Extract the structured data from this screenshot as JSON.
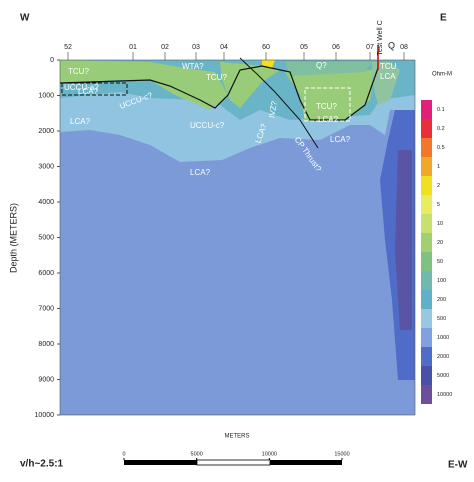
{
  "chart_data": {
    "type": "section",
    "title_left": "W",
    "title_right": "E",
    "ylabel": "Depth (METERS)",
    "xlabel": "METERS",
    "ylim": [
      0,
      10000
    ],
    "yticks": [
      0,
      1000,
      2000,
      3000,
      4000,
      5000,
      6000,
      7000,
      8000,
      9000,
      10000
    ],
    "stations": [
      "52",
      "01",
      "02",
      "03",
      "04",
      "60",
      "05",
      "06",
      "07",
      "08"
    ],
    "well": "Test Well C",
    "well_mark": "Q",
    "colorbar": {
      "title": "Ohm-M",
      "labels": [
        0.1,
        0.2,
        0.5,
        1,
        2,
        5,
        10,
        20,
        50,
        100,
        200,
        500,
        1000,
        2000,
        5000,
        10000
      ],
      "colors": [
        "#e0207a",
        "#e8303a",
        "#f07828",
        "#f0a828",
        "#f0e020",
        "#e8ec60",
        "#c8e070",
        "#a0d070",
        "#80c080",
        "#70b8b0",
        "#60b0c8",
        "#98c8e0",
        "#80a0e0",
        "#4f6cc8",
        "#4a50a8",
        "#6a509a"
      ]
    },
    "annotations": [
      "TCU?",
      "UCCU-a?",
      "LCA?",
      "LCA?",
      "WTA?",
      "TCU?",
      "UCCU-c?",
      "UCCU-c?",
      "LCA?",
      "LCA?",
      "IVZ?",
      "Q?",
      "TCU?",
      "LCA?",
      "CP Thrust?",
      "LCA?",
      "TCU",
      "LCA"
    ],
    "ratio": "v/h~2.5:1",
    "scale_bar": {
      "xlim": [
        0,
        15000
      ],
      "ticks": [
        0,
        5000,
        10000,
        15000
      ]
    },
    "section": "E-W"
  }
}
